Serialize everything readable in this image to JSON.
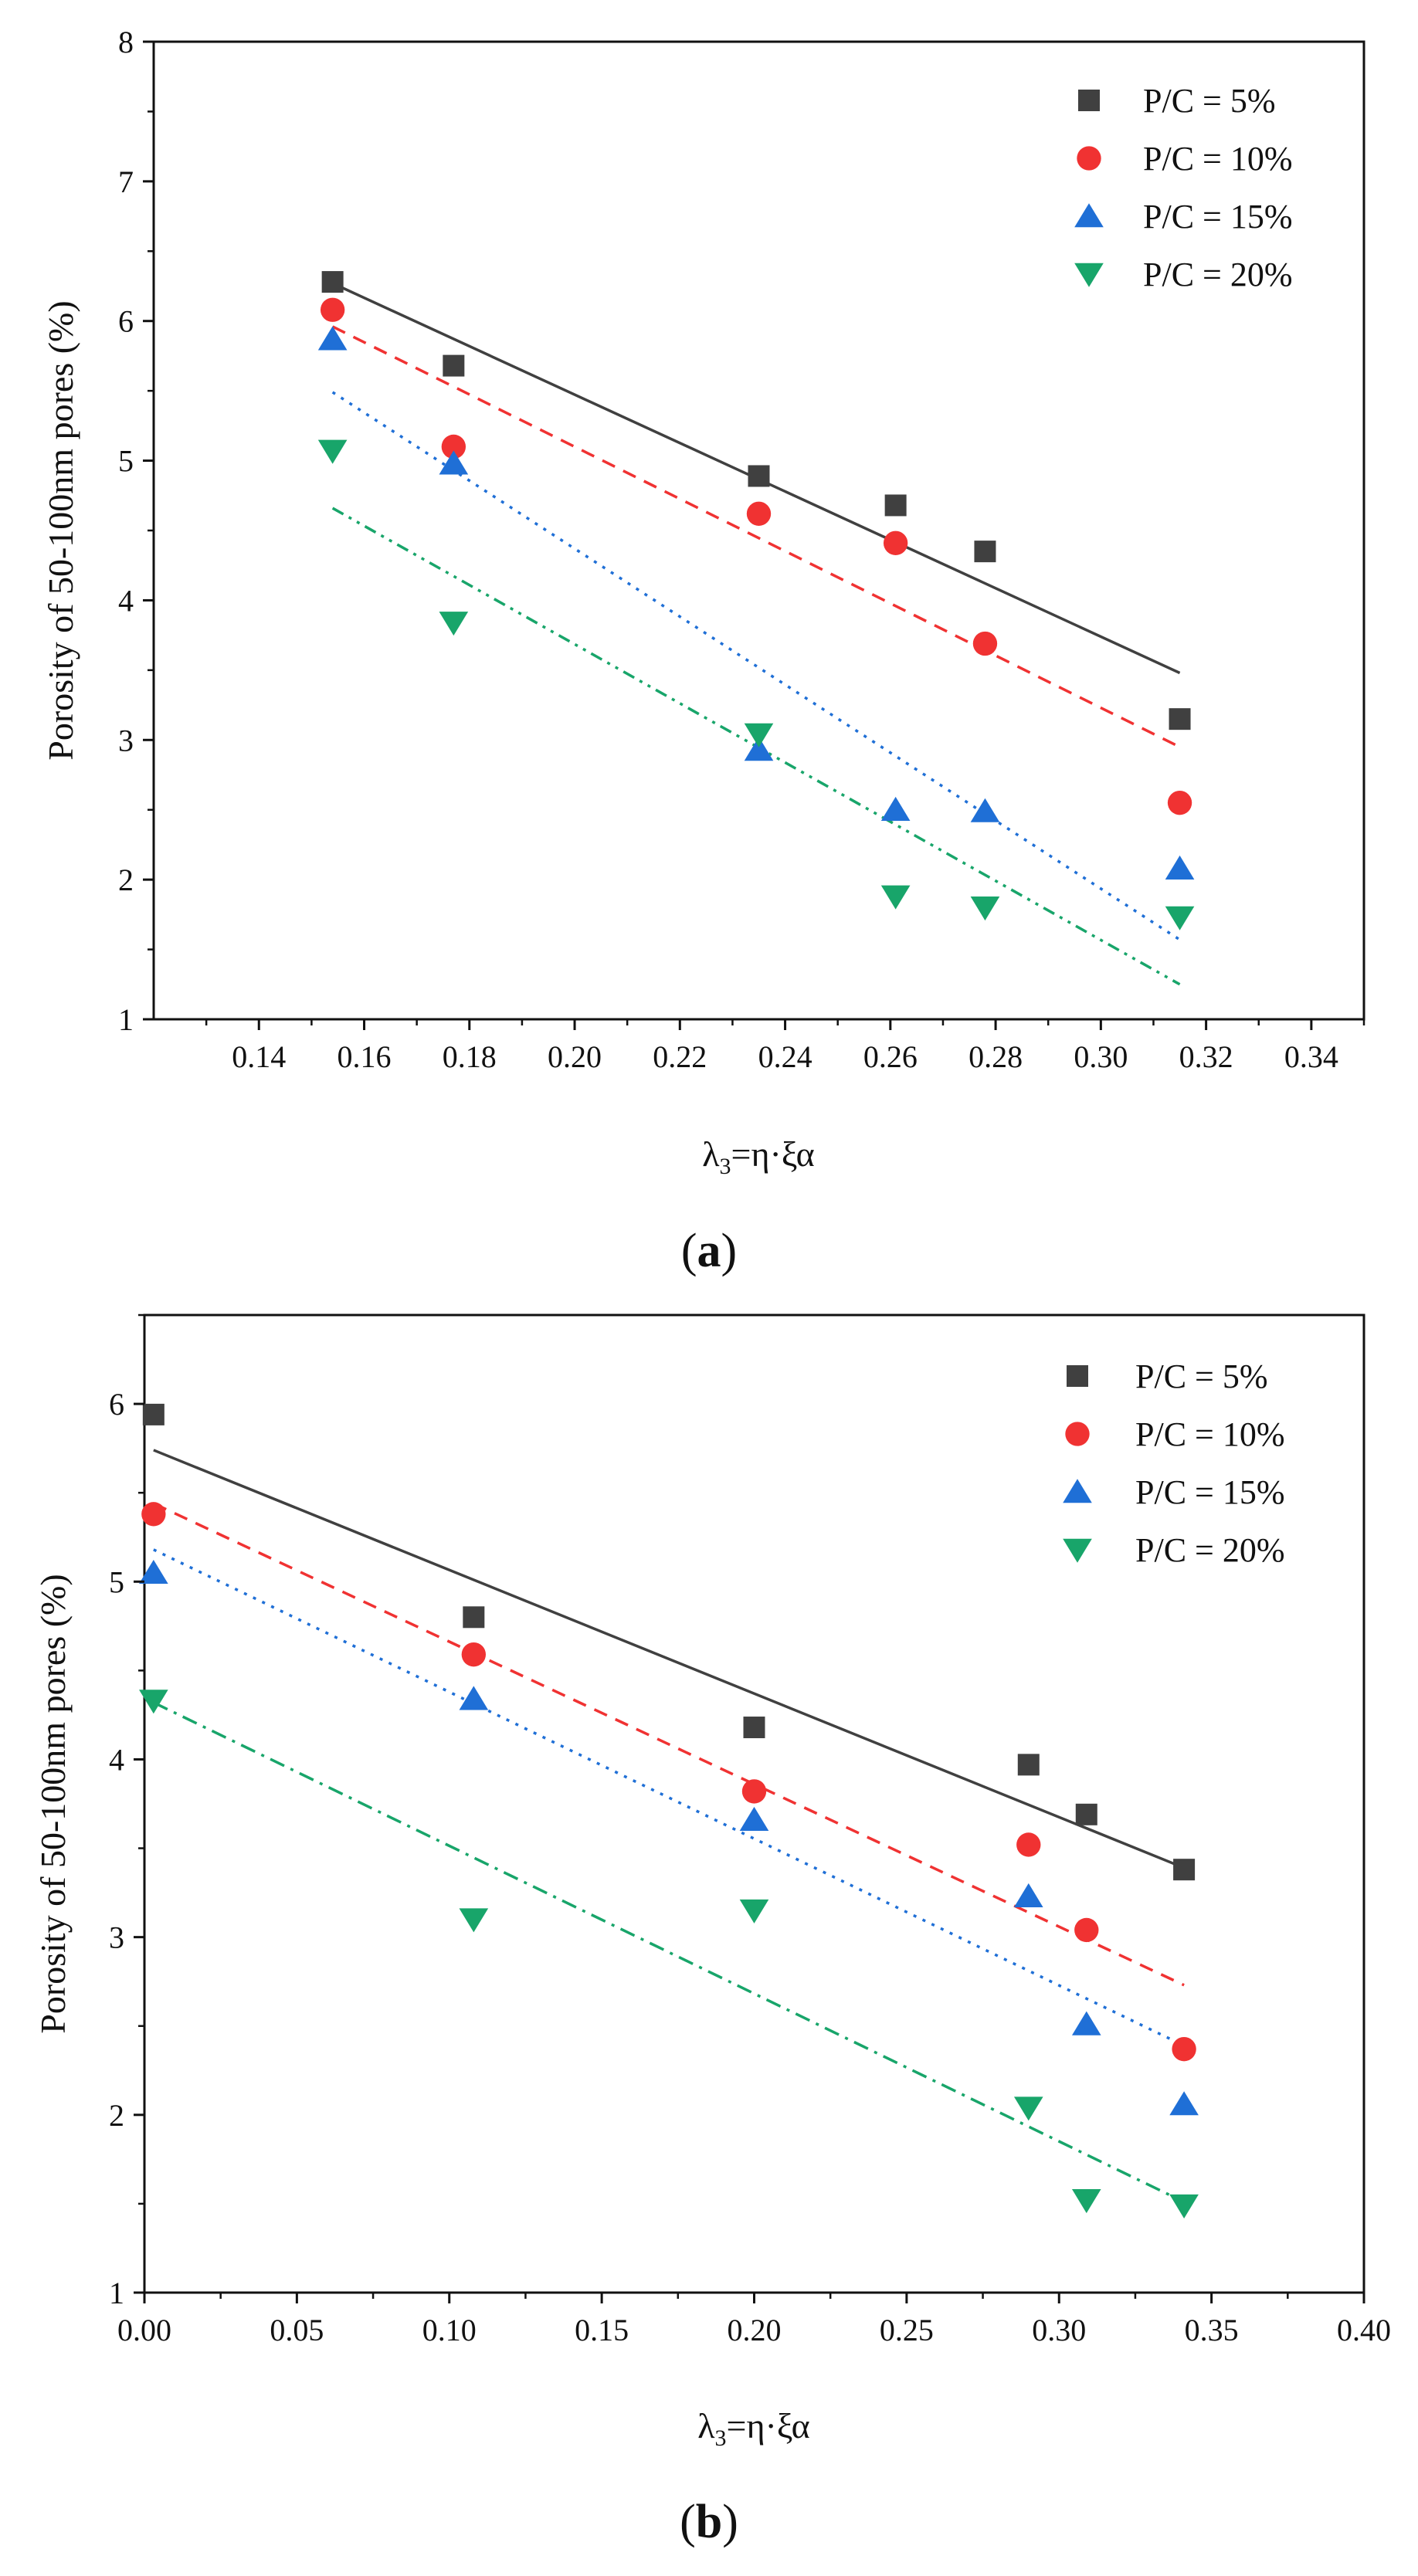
{
  "chart_data": [
    {
      "type": "scatter",
      "panel_label": "a",
      "xlabel": "λ3=η·ξα",
      "ylabel": "Porosity of 50-100nm pores (%)",
      "xlim": [
        0.12,
        0.35
      ],
      "ylim": [
        1,
        8
      ],
      "xticks": [
        "0.14",
        "0.16",
        "0.18",
        "0.20",
        "0.22",
        "0.24",
        "0.26",
        "0.28",
        "0.30",
        "0.32",
        "0.34"
      ],
      "yticks": [
        "1",
        "2",
        "3",
        "4",
        "5",
        "6",
        "7",
        "8"
      ],
      "grid": false,
      "legend_position": "top-right",
      "series": [
        {
          "name": "P/C = 5%",
          "marker": "square",
          "color": "#404040",
          "line_style": "solid",
          "x": [
            0.154,
            0.177,
            0.235,
            0.261,
            0.278,
            0.315
          ],
          "y": [
            6.28,
            5.68,
            4.89,
            4.68,
            4.35,
            3.15
          ],
          "fit": [
            [
              0.154,
              6.27
            ],
            [
              0.315,
              3.48
            ]
          ]
        },
        {
          "name": "P/C = 10%",
          "marker": "circle",
          "color": "#f03232",
          "line_style": "dashed",
          "x": [
            0.154,
            0.177,
            0.235,
            0.261,
            0.278,
            0.315
          ],
          "y": [
            6.08,
            5.1,
            4.62,
            4.41,
            3.69,
            2.55
          ],
          "fit": [
            [
              0.154,
              5.96
            ],
            [
              0.315,
              2.95
            ]
          ]
        },
        {
          "name": "P/C = 15%",
          "marker": "triangle-up",
          "color": "#1f6fd6",
          "line_style": "dotted",
          "x": [
            0.154,
            0.177,
            0.235,
            0.261,
            0.278,
            0.315
          ],
          "y": [
            5.87,
            4.98,
            2.93,
            2.5,
            2.49,
            2.08
          ],
          "fit": [
            [
              0.154,
              5.49
            ],
            [
              0.315,
              1.57
            ]
          ]
        },
        {
          "name": "P/C = 20%",
          "marker": "triangle-down",
          "color": "#18a56a",
          "line_style": "dash-dot-dot",
          "x": [
            0.154,
            0.177,
            0.235,
            0.261,
            0.278,
            0.315
          ],
          "y": [
            5.07,
            3.84,
            3.04,
            1.88,
            1.8,
            1.73
          ],
          "fit": [
            [
              0.154,
              4.66
            ],
            [
              0.315,
              1.25
            ]
          ]
        }
      ]
    },
    {
      "type": "scatter",
      "panel_label": "b",
      "xlabel": "λ3=η·ξα",
      "ylabel": "Porosity of 50-100nm pores (%)",
      "xlim": [
        0.0,
        0.4
      ],
      "ylim": [
        1,
        6.5
      ],
      "xticks": [
        "0.00",
        "0.05",
        "0.10",
        "0.15",
        "0.20",
        "0.25",
        "0.30",
        "0.35",
        "0.40"
      ],
      "yticks": [
        "1",
        "2",
        "3",
        "4",
        "5",
        "6"
      ],
      "grid": false,
      "legend_position": "top-right",
      "series": [
        {
          "name": "P/C = 5%",
          "marker": "square",
          "color": "#404040",
          "line_style": "solid",
          "x": [
            0.003,
            0.108,
            0.2,
            0.29,
            0.309,
            0.341
          ],
          "y": [
            5.94,
            4.8,
            4.18,
            3.97,
            3.69,
            3.38
          ],
          "fit": [
            [
              0.003,
              5.74
            ],
            [
              0.341,
              3.39
            ]
          ]
        },
        {
          "name": "P/C = 10%",
          "marker": "circle",
          "color": "#f03232",
          "line_style": "dashed",
          "x": [
            0.003,
            0.108,
            0.2,
            0.29,
            0.309,
            0.341
          ],
          "y": [
            5.38,
            4.59,
            3.82,
            3.52,
            3.04,
            2.37
          ],
          "fit": [
            [
              0.003,
              5.44
            ],
            [
              0.341,
              2.73
            ]
          ]
        },
        {
          "name": "P/C = 15%",
          "marker": "triangle-up",
          "color": "#1f6fd6",
          "line_style": "dotted",
          "x": [
            0.003,
            0.108,
            0.2,
            0.29,
            0.309,
            0.341
          ],
          "y": [
            5.05,
            4.34,
            3.66,
            3.23,
            2.51,
            2.06
          ],
          "fit": [
            [
              0.003,
              5.18
            ],
            [
              0.341,
              2.39
            ]
          ]
        },
        {
          "name": "P/C = 20%",
          "marker": "triangle-down",
          "color": "#18a56a",
          "line_style": "dash-dot",
          "x": [
            0.003,
            0.108,
            0.2,
            0.29,
            0.309,
            0.341
          ],
          "y": [
            4.33,
            3.1,
            3.15,
            2.04,
            1.52,
            1.49
          ],
          "fit": [
            [
              0.003,
              4.32
            ],
            [
              0.341,
              1.51
            ]
          ]
        }
      ]
    }
  ]
}
